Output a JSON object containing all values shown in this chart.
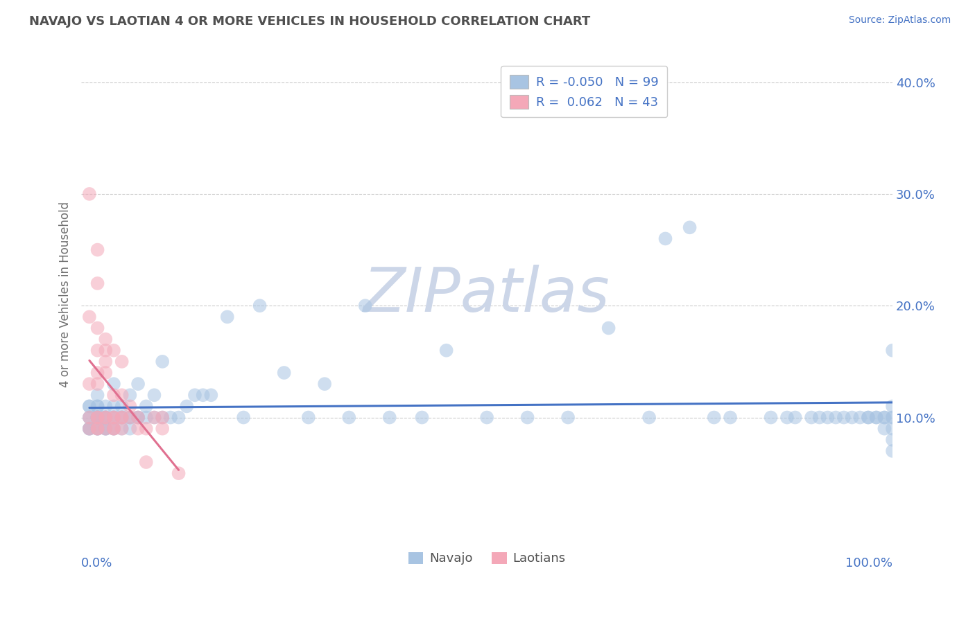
{
  "title": "NAVAJO VS LAOTIAN 4 OR MORE VEHICLES IN HOUSEHOLD CORRELATION CHART",
  "source_text": "Source: ZipAtlas.com",
  "ylabel": "4 or more Vehicles in Household",
  "legend_navajo_R": "-0.050",
  "legend_navajo_N": "99",
  "legend_laotian_R": "0.062",
  "legend_laotian_N": "43",
  "navajo_color": "#a8c4e2",
  "laotian_color": "#f4a8b8",
  "trend_navajo_color": "#4472c4",
  "trend_laotian_color": "#e07090",
  "background_color": "#ffffff",
  "grid_color": "#cccccc",
  "title_color": "#505050",
  "watermark_color": "#ccd6e8",
  "navajo_x": [
    0.01,
    0.01,
    0.01,
    0.01,
    0.01,
    0.01,
    0.01,
    0.02,
    0.02,
    0.02,
    0.02,
    0.02,
    0.02,
    0.02,
    0.02,
    0.02,
    0.02,
    0.02,
    0.02,
    0.03,
    0.03,
    0.03,
    0.03,
    0.03,
    0.03,
    0.03,
    0.04,
    0.04,
    0.04,
    0.04,
    0.04,
    0.04,
    0.05,
    0.05,
    0.05,
    0.05,
    0.06,
    0.06,
    0.06,
    0.06,
    0.07,
    0.07,
    0.07,
    0.08,
    0.08,
    0.09,
    0.09,
    0.1,
    0.1,
    0.11,
    0.12,
    0.13,
    0.14,
    0.15,
    0.16,
    0.18,
    0.2,
    0.22,
    0.25,
    0.28,
    0.3,
    0.33,
    0.35,
    0.38,
    0.42,
    0.45,
    0.5,
    0.55,
    0.6,
    0.65,
    0.7,
    0.72,
    0.75,
    0.78,
    0.8,
    0.85,
    0.87,
    0.88,
    0.9,
    0.91,
    0.92,
    0.93,
    0.94,
    0.95,
    0.96,
    0.97,
    0.97,
    0.98,
    0.98,
    0.99,
    0.99,
    0.99,
    1.0,
    1.0,
    1.0,
    1.0,
    1.0,
    1.0,
    1.0
  ],
  "navajo_y": [
    0.09,
    0.09,
    0.09,
    0.1,
    0.1,
    0.11,
    0.11,
    0.09,
    0.09,
    0.09,
    0.1,
    0.1,
    0.1,
    0.1,
    0.1,
    0.1,
    0.11,
    0.11,
    0.12,
    0.09,
    0.09,
    0.09,
    0.1,
    0.1,
    0.1,
    0.11,
    0.09,
    0.09,
    0.1,
    0.1,
    0.11,
    0.13,
    0.09,
    0.1,
    0.1,
    0.11,
    0.09,
    0.1,
    0.1,
    0.12,
    0.1,
    0.1,
    0.13,
    0.1,
    0.11,
    0.1,
    0.12,
    0.1,
    0.15,
    0.1,
    0.1,
    0.11,
    0.12,
    0.12,
    0.12,
    0.19,
    0.1,
    0.2,
    0.14,
    0.1,
    0.13,
    0.1,
    0.2,
    0.1,
    0.1,
    0.16,
    0.1,
    0.1,
    0.1,
    0.18,
    0.1,
    0.26,
    0.27,
    0.1,
    0.1,
    0.1,
    0.1,
    0.1,
    0.1,
    0.1,
    0.1,
    0.1,
    0.1,
    0.1,
    0.1,
    0.1,
    0.1,
    0.1,
    0.1,
    0.09,
    0.1,
    0.1,
    0.07,
    0.08,
    0.09,
    0.1,
    0.1,
    0.11,
    0.16
  ],
  "laotian_x": [
    0.01,
    0.01,
    0.01,
    0.01,
    0.01,
    0.02,
    0.02,
    0.02,
    0.02,
    0.02,
    0.02,
    0.02,
    0.02,
    0.02,
    0.02,
    0.03,
    0.03,
    0.03,
    0.03,
    0.03,
    0.03,
    0.03,
    0.04,
    0.04,
    0.04,
    0.04,
    0.04,
    0.04,
    0.05,
    0.05,
    0.05,
    0.05,
    0.05,
    0.06,
    0.06,
    0.07,
    0.07,
    0.08,
    0.08,
    0.09,
    0.1,
    0.1,
    0.12
  ],
  "laotian_y": [
    0.09,
    0.1,
    0.13,
    0.19,
    0.3,
    0.09,
    0.09,
    0.1,
    0.1,
    0.13,
    0.14,
    0.16,
    0.18,
    0.22,
    0.25,
    0.09,
    0.1,
    0.1,
    0.14,
    0.15,
    0.16,
    0.17,
    0.09,
    0.09,
    0.1,
    0.1,
    0.12,
    0.16,
    0.09,
    0.1,
    0.1,
    0.12,
    0.15,
    0.1,
    0.11,
    0.09,
    0.1,
    0.06,
    0.09,
    0.1,
    0.09,
    0.1,
    0.05
  ],
  "xlim": [
    0.0,
    1.0
  ],
  "ylim": [
    0.0,
    0.42
  ],
  "ytick_vals": [
    0.1,
    0.2,
    0.3,
    0.4
  ],
  "ytick_labels": [
    "10.0%",
    "20.0%",
    "30.0%",
    "40.0%"
  ],
  "legend_items": [
    "Navajo",
    "Laotians"
  ],
  "legend_colors": [
    "#a8c4e2",
    "#f4a8b8"
  ]
}
